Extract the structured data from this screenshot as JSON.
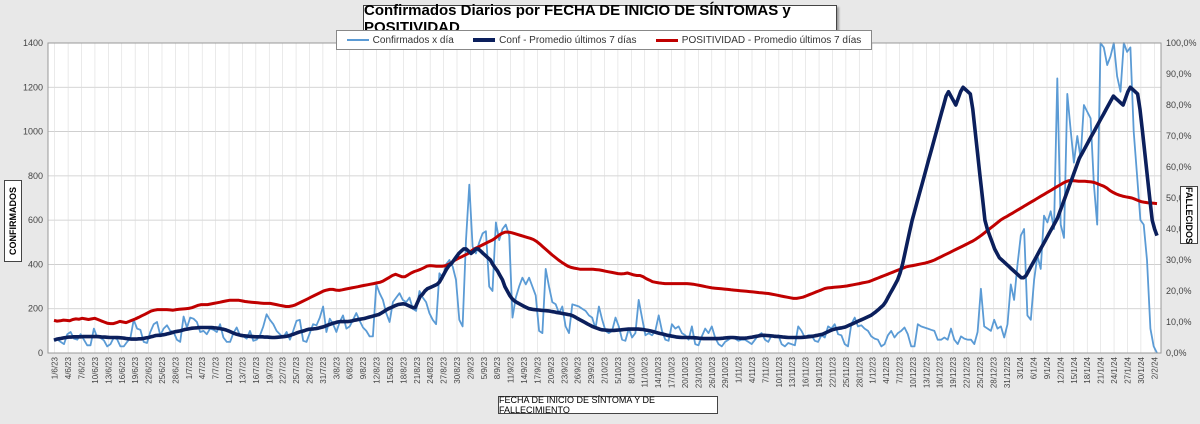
{
  "chart_data": {
    "type": "line",
    "title": "Confirmados  Diarios  por FECHA DE INICIO DE SÍNTOMAS y POSITIVIDAD",
    "xlabel": "FECHA DE INICIO DE SÍNTOMA  Y DE FALLECIMIENTO",
    "ylabel": "CONFIRMADOS",
    "y2label": "FALLECIDOS",
    "ylim": [
      0,
      1400
    ],
    "y2lim": [
      0,
      100
    ],
    "yticks": [
      "0",
      "200",
      "400",
      "600",
      "800",
      "1000",
      "1200",
      "1400"
    ],
    "y2ticks": [
      "0,0%",
      "10,0%",
      "20,0%",
      "30,0%",
      "40,0%",
      "50,0%",
      "60,0%",
      "70,0%",
      "80,0%",
      "90,0%",
      "100,0%"
    ],
    "x_tick_labels": [
      "1/6/23",
      "4/6/23",
      "7/6/23",
      "10/6/23",
      "13/6/23",
      "16/6/23",
      "19/6/23",
      "22/6/23",
      "25/6/23",
      "28/6/23",
      "1/7/23",
      "4/7/23",
      "7/7/23",
      "10/7/23",
      "13/7/23",
      "16/7/23",
      "19/7/23",
      "22/7/23",
      "25/7/23",
      "28/7/23",
      "31/7/23",
      "3/8/23",
      "6/8/23",
      "9/8/23",
      "12/8/23",
      "15/8/23",
      "18/8/23",
      "21/8/23",
      "24/8/23",
      "27/8/23",
      "30/8/23",
      "2/9/23",
      "5/9/23",
      "8/9/23",
      "11/9/23",
      "14/9/23",
      "17/9/23",
      "20/9/23",
      "23/9/23",
      "26/9/23",
      "29/9/23",
      "2/10/23",
      "5/10/23",
      "8/10/23",
      "11/10/23",
      "14/10/23",
      "17/10/23",
      "20/10/23",
      "23/10/23",
      "26/10/23",
      "29/10/23",
      "1/11/23",
      "4/11/23",
      "7/11/23",
      "10/11/23",
      "13/11/23",
      "16/11/23",
      "19/11/23",
      "22/11/23",
      "25/11/23",
      "28/11/23",
      "1/12/23",
      "4/12/23",
      "7/12/23",
      "10/12/23",
      "13/12/23",
      "16/12/23",
      "19/12/23",
      "22/12/23",
      "25/12/23",
      "28/12/23",
      "31/12/23",
      "3/1/24",
      "6/1/24",
      "9/1/24",
      "12/1/24",
      "15/1/24",
      "18/1/24",
      "21/1/24",
      "24/1/24",
      "27/1/24",
      "30/1/24",
      "2/2/24"
    ],
    "legend_position": "top",
    "grid": true,
    "series": [
      {
        "name": "Confirmados x día",
        "color": "#5b9bd5",
        "axis": "left",
        "values": [
          55,
          62,
          50,
          40,
          85,
          95,
          65,
          60,
          85,
          60,
          35,
          35,
          110,
          70,
          68,
          58,
          30,
          40,
          70,
          62,
          30,
          30,
          50,
          68,
          150,
          110,
          105,
          50,
          45,
          95,
          130,
          140,
          80,
          110,
          125,
          100,
          95,
          60,
          50,
          165,
          115,
          160,
          155,
          140,
          95,
          100,
          85,
          110,
          105,
          95,
          130,
          70,
          50,
          50,
          90,
          115,
          80,
          75,
          65,
          100,
          55,
          60,
          80,
          120,
          175,
          150,
          130,
          100,
          85,
          70,
          95,
          60,
          100,
          145,
          150,
          55,
          50,
          90,
          130,
          125,
          160,
          210,
          95,
          155,
          130,
          95,
          140,
          170,
          110,
          120,
          150,
          180,
          145,
          115,
          100,
          75,
          75,
          310,
          270,
          240,
          180,
          140,
          230,
          250,
          270,
          240,
          230,
          250,
          200,
          190,
          280,
          250,
          230,
          180,
          150,
          130,
          360,
          340,
          400,
          420,
          390,
          330,
          150,
          120,
          510,
          760,
          480,
          450,
          500,
          540,
          550,
          300,
          280,
          590,
          510,
          560,
          580,
          530,
          160,
          250,
          300,
          340,
          310,
          340,
          300,
          260,
          100,
          90,
          380,
          300,
          230,
          220,
          180,
          210,
          120,
          90,
          220,
          215,
          210,
          200,
          190,
          170,
          160,
          110,
          210,
          150,
          100,
          90,
          100,
          160,
          120,
          60,
          55,
          110,
          70,
          90,
          240,
          160,
          80,
          90,
          80,
          100,
          170,
          100,
          60,
          55,
          130,
          110,
          120,
          90,
          80,
          60,
          120,
          40,
          35,
          75,
          110,
          90,
          120,
          70,
          40,
          30,
          50,
          60,
          70,
          65,
          55,
          60,
          60,
          50,
          40,
          60,
          80,
          90,
          60,
          50,
          80,
          70,
          80,
          40,
          30,
          45,
          40,
          35,
          120,
          100,
          70,
          80,
          80,
          55,
          50,
          80,
          70,
          120,
          110,
          130,
          85,
          80,
          40,
          30,
          130,
          160,
          120,
          125,
          110,
          100,
          75,
          65,
          60,
          30,
          40,
          80,
          100,
          70,
          90,
          100,
          115,
          85,
          30,
          30,
          130,
          120,
          115,
          110,
          105,
          100,
          60,
          60,
          70,
          60,
          110,
          60,
          40,
          75,
          65,
          60,
          60,
          40,
          95,
          290,
          120,
          110,
          100,
          150,
          110,
          120,
          70,
          130,
          310,
          240,
          400,
          530,
          560,
          170,
          150,
          330,
          440,
          380,
          620,
          590,
          640,
          560,
          1240,
          580,
          520,
          1170,
          1010,
          860,
          980,
          880,
          1120,
          1090,
          1060,
          760,
          580,
          1540,
          1380,
          1300,
          1340,
          1400,
          1250,
          1180,
          1440,
          1360,
          1380,
          1000,
          800,
          600,
          580,
          420,
          110,
          30,
          0
        ]
      },
      {
        "name": "Conf - Promedio últimos 7 días",
        "color": "#0b1f5c",
        "axis": "left",
        "values": [
          58,
          62,
          64,
          66,
          68,
          70,
          72,
          72,
          73,
          73,
          73,
          73,
          74,
          74,
          74,
          74,
          74,
          74,
          74,
          73,
          72,
          72,
          71,
          70,
          70,
          70,
          70,
          69,
          68,
          67,
          65,
          64,
          63,
          63,
          63,
          64,
          64,
          66,
          68,
          70,
          73,
          76,
          79,
          80,
          80,
          82,
          84,
          87,
          90,
          93,
          96,
          98,
          100,
          103,
          106,
          108,
          110,
          112,
          113,
          114,
          115,
          115,
          115,
          115,
          115,
          115,
          114,
          113,
          111,
          109,
          107,
          104,
          100,
          95,
          90,
          86,
          83,
          80,
          78,
          77,
          76,
          75,
          74,
          73,
          73,
          73,
          73,
          72,
          72,
          71,
          70,
          70,
          71,
          72,
          73,
          74,
          76,
          78,
          82,
          86,
          90,
          94,
          97,
          100,
          104,
          107,
          108,
          109,
          110,
          112,
          115,
          118,
          122,
          126,
          130,
          134,
          137,
          140,
          142,
          142,
          142,
          142,
          143,
          145,
          148,
          150,
          152,
          154,
          156,
          159,
          162,
          165,
          168,
          171,
          174,
          180,
          187,
          194,
          200,
          205,
          210,
          215,
          219,
          221,
          222,
          220,
          215,
          210,
          205,
          205,
          230,
          255,
          265,
          280,
          290,
          295,
          300,
          305,
          310,
          320,
          340,
          360,
          380,
          395,
          405,
          420,
          435,
          450,
          460,
          470,
          470,
          460,
          450,
          458,
          470,
          470,
          460,
          450,
          440,
          430,
          420,
          400,
          385,
          370,
          350,
          330,
          300,
          280,
          260,
          245,
          235,
          228,
          222,
          216,
          210,
          205,
          200,
          198,
          196,
          195,
          194,
          193,
          192,
          191,
          190,
          188,
          186,
          184,
          182,
          180,
          178,
          176,
          174,
          172,
          168,
          162,
          156,
          150,
          144,
          138,
          132,
          126,
          120,
          116,
          112,
          108,
          105,
          104,
          103,
          102,
          102,
          102,
          103,
          104,
          105,
          106,
          107,
          108,
          108,
          108,
          108,
          108,
          107,
          106,
          104,
          102,
          100,
          97,
          94,
          91,
          88,
          86,
          83,
          80,
          78,
          76,
          74,
          72,
          71,
          70,
          70,
          70,
          70,
          69,
          69,
          68,
          67,
          66,
          65,
          65,
          65,
          65,
          65,
          65,
          65,
          66,
          67,
          68,
          69,
          70,
          70,
          69,
          68,
          67,
          67,
          67,
          68,
          70,
          72,
          74,
          76,
          78,
          80,
          80,
          79,
          78,
          77,
          76,
          75,
          74,
          73,
          72,
          71,
          70,
          70,
          70,
          70,
          70,
          70,
          71,
          72,
          73,
          74,
          76,
          78,
          80,
          82,
          85,
          90,
          95,
          100,
          105,
          108,
          110,
          112,
          114,
          116,
          120,
          125,
          130,
          135,
          140,
          145,
          150,
          155,
          160,
          165,
          170,
          178,
          186,
          195,
          205,
          215,
          230,
          250,
          270,
          290,
          310,
          330,
          360,
          400,
          450,
          500,
          550,
          600,
          640,
          680,
          720,
          760,
          800,
          840,
          880,
          920,
          960,
          1000,
          1040,
          1080,
          1120,
          1160,
          1180,
          1160,
          1140,
          1120,
          1150,
          1180,
          1200,
          1190,
          1180,
          1170,
          1100,
          1000,
          900,
          800,
          700,
          600,
          560,
          530,
          500,
          470,
          450,
          430,
          420,
          410,
          400,
          390,
          380,
          370,
          360,
          350,
          340,
          340,
          350,
          370,
          390,
          410,
          430,
          450,
          470,
          490,
          510,
          530,
          550,
          570,
          590,
          610,
          640,
          670,
          700,
          730,
          760,
          790,
          820,
          850,
          880,
          900,
          920,
          940,
          960,
          980,
          1000,
          1020,
          1040,
          1060,
          1080,
          1100,
          1120,
          1140,
          1160,
          1150,
          1140,
          1130,
          1120,
          1150,
          1180,
          1200,
          1190,
          1180,
          1170,
          1100,
          1000,
          900,
          800,
          700,
          600,
          560,
          530
        ]
      },
      {
        "name": "POSITIVIDAD - Promedio últimos 7 días",
        "color": "#c00000",
        "axis": "right",
        "values": [
          10.5,
          10.3,
          10.4,
          10.6,
          10.5,
          10.4,
          10.8,
          11.0,
          10.9,
          11.2,
          11.0,
          10.8,
          11.0,
          11.2,
          10.8,
          10.4,
          10.0,
          9.6,
          9.5,
          9.5,
          9.8,
          10.2,
          10.0,
          9.8,
          10.2,
          10.6,
          11.0,
          11.5,
          12.0,
          12.5,
          13.0,
          13.5,
          13.8,
          14.0,
          14.0,
          14.0,
          14.0,
          13.9,
          13.8,
          14.0,
          14.1,
          14.2,
          14.3,
          14.4,
          14.6,
          15.0,
          15.4,
          15.6,
          15.6,
          15.6,
          15.8,
          16.0,
          16.2,
          16.4,
          16.6,
          16.8,
          17.0,
          17.0,
          17.0,
          17.0,
          16.8,
          16.6,
          16.5,
          16.4,
          16.3,
          16.2,
          16.1,
          16.0,
          16.0,
          16.0,
          15.8,
          15.6,
          15.4,
          15.2,
          15.0,
          15.0,
          15.2,
          15.5,
          16.0,
          16.5,
          17.0,
          17.5,
          18.0,
          18.5,
          19.0,
          19.5,
          20.0,
          20.3,
          20.5,
          20.5,
          20.3,
          20.2,
          20.4,
          20.6,
          20.8,
          21.0,
          21.2,
          21.4,
          21.6,
          21.8,
          22.0,
          22.2,
          22.4,
          22.6,
          22.8,
          23.2,
          23.8,
          24.4,
          25.0,
          25.4,
          25.0,
          24.6,
          24.6,
          25.2,
          25.8,
          26.3,
          26.6,
          27.0,
          27.5,
          28.0,
          28.2,
          28.1,
          28.0,
          28.0,
          28.0,
          28.2,
          28.6,
          29.3,
          30.0,
          30.5,
          31.0,
          31.5,
          32.0,
          32.8,
          33.5,
          34.0,
          34.5,
          35.0,
          35.5,
          36.0,
          36.5,
          37.2,
          38.0,
          38.6,
          39.0,
          39.0,
          38.8,
          38.5,
          38.2,
          37.9,
          37.6,
          37.3,
          37.0,
          36.6,
          36.0,
          35.2,
          34.3,
          33.4,
          32.5,
          31.6,
          30.8,
          30.0,
          29.3,
          28.6,
          28.0,
          27.6,
          27.4,
          27.2,
          27.0,
          27.0,
          27.0,
          27.0,
          27.0,
          26.9,
          26.8,
          26.6,
          26.4,
          26.2,
          26.0,
          25.8,
          25.6,
          25.5,
          25.6,
          25.8,
          25.5,
          25.2,
          25.0,
          25.0,
          24.6,
          24.0,
          23.5,
          23.0,
          22.8,
          22.6,
          22.5,
          22.4,
          22.4,
          22.4,
          22.4,
          22.4,
          22.4,
          22.4,
          22.4,
          22.3,
          22.2,
          22.0,
          21.8,
          21.6,
          21.4,
          21.2,
          21.0,
          20.9,
          20.8,
          20.7,
          20.6,
          20.5,
          20.4,
          20.3,
          20.2,
          20.1,
          20.0,
          19.9,
          19.8,
          19.7,
          19.6,
          19.5,
          19.4,
          19.3,
          19.2,
          19.0,
          18.8,
          18.6,
          18.4,
          18.2,
          18.0,
          17.8,
          17.6,
          17.6,
          17.8,
          18.0,
          18.4,
          18.8,
          19.2,
          19.6,
          20.0,
          20.4,
          20.8,
          21.0,
          21.1,
          21.2,
          21.3,
          21.4,
          21.5,
          21.6,
          21.8,
          22.0,
          22.2,
          22.4,
          22.6,
          22.8,
          23.0,
          23.4,
          23.8,
          24.2,
          24.6,
          25.0,
          25.4,
          25.8,
          26.2,
          26.6,
          27.0,
          27.4,
          27.8,
          28.0,
          28.2,
          28.4,
          28.6,
          28.8,
          29.0,
          29.3,
          29.6,
          30.0,
          30.5,
          31.0,
          31.5,
          32.0,
          32.5,
          33.0,
          33.5,
          34.0,
          34.5,
          35.0,
          35.5,
          36.0,
          36.6,
          37.3,
          38.0,
          38.8,
          39.6,
          40.4,
          41.2,
          42.0,
          42.8,
          43.5,
          44.0,
          44.6,
          45.2,
          45.8,
          46.4,
          47.0,
          47.6,
          48.2,
          48.8,
          49.4,
          50.0,
          50.6,
          51.2,
          51.8,
          52.4,
          53.0,
          53.6,
          54.2,
          54.8,
          55.3,
          55.6,
          55.6,
          55.5,
          55.4,
          55.4,
          55.4,
          55.3,
          55.2,
          55.0,
          54.6,
          54.2,
          53.8,
          53.2,
          52.4,
          51.8,
          51.3,
          50.9,
          50.6,
          50.4,
          50.2,
          50.0,
          49.6,
          49.2,
          48.8,
          48.6,
          48.5,
          48.4,
          48.3,
          48.2
        ]
      }
    ]
  }
}
